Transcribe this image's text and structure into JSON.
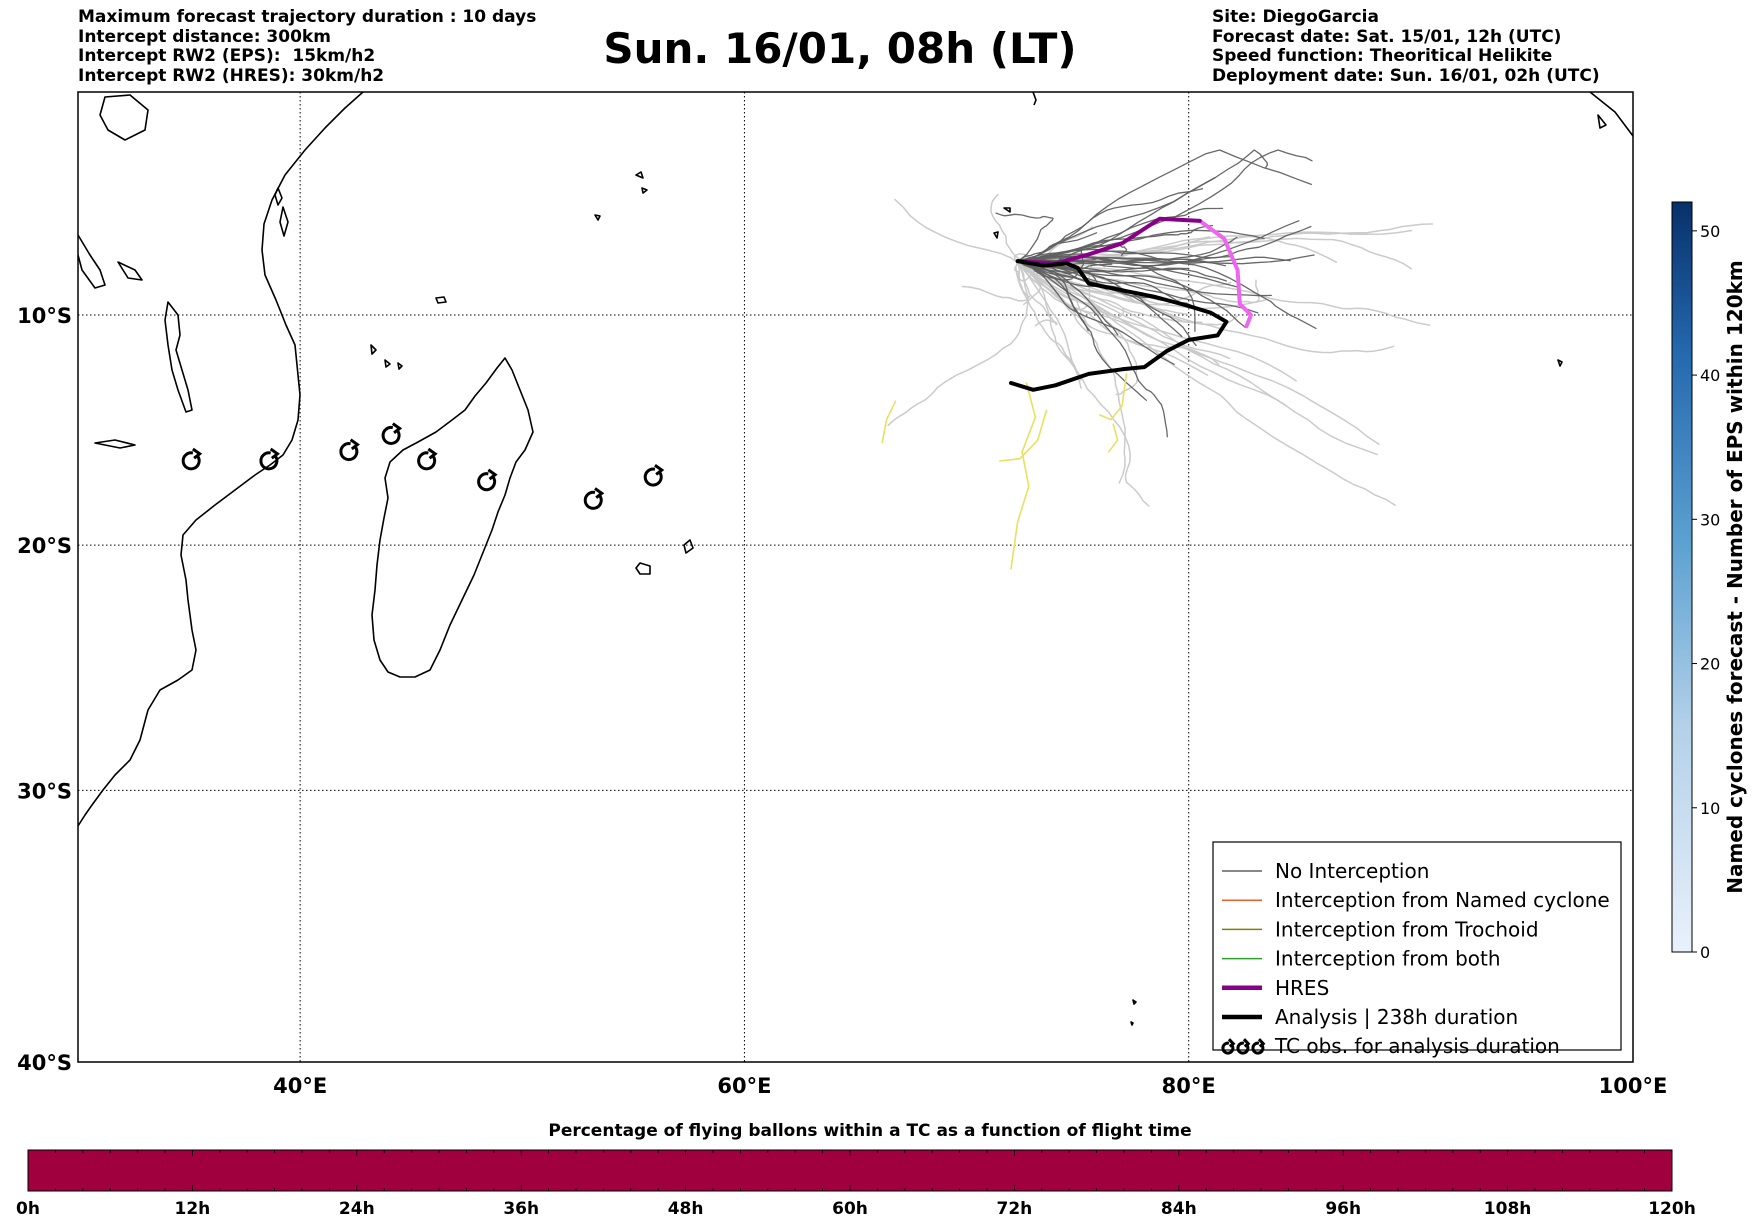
{
  "header_left": [
    "Maximum forecast trajectory duration : 10 days",
    "Intercept distance: 300km",
    "Intercept RW2 (EPS):  15km/h2",
    "Intercept RW2 (HRES): 30km/h2"
  ],
  "header_right": [
    "Site: DiegoGarcia",
    "Forecast date: Sat. 15/01, 12h (UTC)",
    "Speed function: Theoritical Helikite",
    "Deployment date: Sun. 16/01, 02h (UTC)"
  ],
  "title": "Sun. 16/01, 08h (LT)",
  "map": {
    "lon_range": [
      30,
      100
    ],
    "lat_range": [
      -40,
      0
    ],
    "lon_ticks": [
      {
        "value": 40,
        "label": "40°E"
      },
      {
        "value": 60,
        "label": "60°E"
      },
      {
        "value": 80,
        "label": "80°E"
      },
      {
        "value": 100,
        "label": "100°E"
      }
    ],
    "lat_ticks": [
      {
        "value": -10,
        "label": "10°S"
      },
      {
        "value": -20,
        "label": "20°S"
      },
      {
        "value": -30,
        "label": "30°S"
      },
      {
        "value": -40,
        "label": "40°S"
      }
    ],
    "grid": true,
    "colors": {
      "no_interception": "#606060",
      "named_cyclone": "#e8602c",
      "trochoid": "#808000",
      "both": "#2ca02c",
      "hres": "#880088",
      "hres_light": "#ee66ee",
      "analysis": "#000000",
      "eps_faint": "#c8c8c8",
      "yellow": "#e8e060"
    },
    "hres_track": [
      [
        72.3,
        -7.6
      ],
      [
        74,
        -7.7
      ],
      [
        75.5,
        -7.3
      ],
      [
        77,
        -6.8
      ],
      [
        78.7,
        -5.7
      ],
      [
        80.5,
        -5.8
      ]
    ],
    "hres_track_later": [
      [
        80.5,
        -5.8
      ],
      [
        81.6,
        -6.6
      ],
      [
        82.2,
        -8.0
      ],
      [
        82.3,
        -9.5
      ],
      [
        82.8,
        -10.0
      ],
      [
        82.6,
        -10.5
      ]
    ],
    "analysis_track": [
      [
        72.3,
        -7.6
      ],
      [
        73.5,
        -7.8
      ],
      [
        74.5,
        -7.7
      ],
      [
        75.0,
        -7.9
      ],
      [
        75.5,
        -8.6
      ],
      [
        77.0,
        -8.9
      ],
      [
        78.5,
        -9.2
      ],
      [
        80.0,
        -9.6
      ],
      [
        81.0,
        -9.9
      ],
      [
        81.7,
        -10.3
      ],
      [
        81.3,
        -10.9
      ],
      [
        80.0,
        -11.1
      ],
      [
        79.0,
        -11.6
      ],
      [
        78.0,
        -12.3
      ],
      [
        77.0,
        -12.4
      ],
      [
        75.5,
        -12.6
      ],
      [
        74.0,
        -13.1
      ],
      [
        73.0,
        -13.3
      ],
      [
        72.0,
        -13.0
      ]
    ],
    "tc_obs_positions": [
      [
        35.1,
        -16.4
      ],
      [
        38.6,
        -16.4
      ],
      [
        42.2,
        -16.0
      ],
      [
        44.1,
        -15.3
      ],
      [
        45.7,
        -16.4
      ],
      [
        48.4,
        -17.3
      ],
      [
        53.2,
        -18.1
      ],
      [
        55.9,
        -17.1
      ]
    ]
  },
  "legend": {
    "position": "lower-right",
    "entries": [
      {
        "label": "No Interception",
        "color": "#606060",
        "kind": "line"
      },
      {
        "label": "Interception from Named cyclone",
        "color": "#e8602c",
        "kind": "line"
      },
      {
        "label": "Interception from Trochoid",
        "color": "#808000",
        "kind": "line"
      },
      {
        "label": "Interception from both",
        "color": "#2ca02c",
        "kind": "line"
      },
      {
        "label": "HRES",
        "color": "#880088",
        "kind": "thick"
      },
      {
        "label": "Analysis | 238h duration",
        "color": "#000000",
        "kind": "thick"
      },
      {
        "label": "TC obs. for analysis duration",
        "color": "#000000",
        "kind": "symbol"
      }
    ]
  },
  "right_colorbar": {
    "label": "Named cyclones forecast - Number of EPS within 120km",
    "range": [
      0,
      52
    ],
    "ticks": [
      0,
      10,
      20,
      30,
      40,
      50
    ],
    "colors": [
      "#e9f1fb",
      "#08306b"
    ]
  },
  "bottom_colorbar": {
    "title": "Percentage of flying ballons within a TC as a function of flight time",
    "fill_color": "#a0003e",
    "ticks": [
      "0h",
      "12h",
      "24h",
      "36h",
      "48h",
      "60h",
      "72h",
      "84h",
      "96h",
      "108h",
      "120h"
    ]
  }
}
